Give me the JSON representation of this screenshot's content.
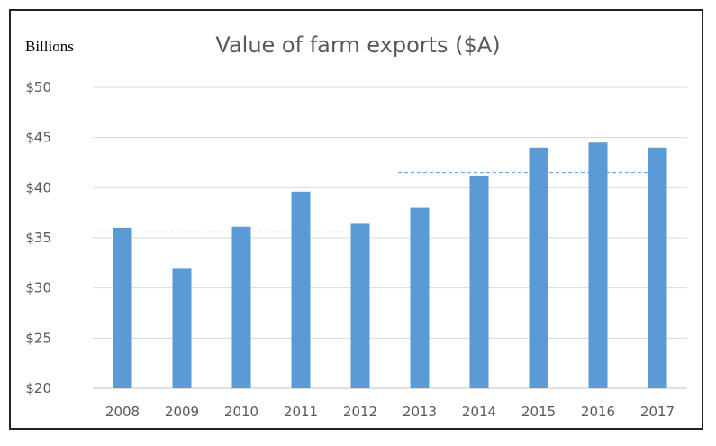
{
  "chart_data": {
    "type": "bar",
    "title": "Value of farm exports ($A)",
    "unit_label": "Billions",
    "categories": [
      "2008",
      "2009",
      "2010",
      "2011",
      "2012",
      "2013",
      "2014",
      "2015",
      "2016",
      "2017"
    ],
    "values": [
      36.0,
      32.0,
      36.1,
      39.6,
      36.4,
      38.0,
      41.2,
      44.0,
      44.5,
      44.0
    ],
    "ylim": [
      20,
      50
    ],
    "y_ticks": [
      "$20",
      "$25",
      "$30",
      "$35",
      "$40",
      "$45",
      "$50"
    ],
    "y_tick_values": [
      20,
      25,
      30,
      35,
      40,
      45,
      50
    ],
    "grid": true,
    "bar_color": "#5b9bd5",
    "reference_lines": [
      {
        "value": 35.6,
        "from_category": "2008",
        "to_category": "2012"
      },
      {
        "value": 41.5,
        "from_category": "2013",
        "to_category": "2017"
      }
    ]
  }
}
